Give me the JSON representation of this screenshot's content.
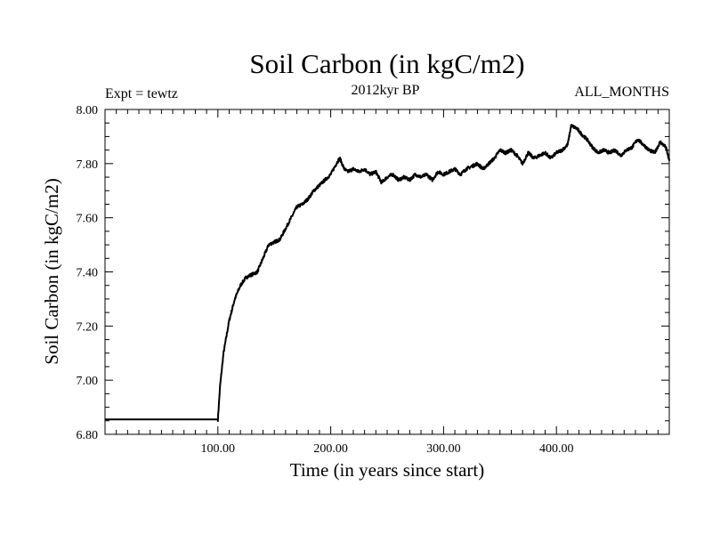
{
  "chart_data": {
    "type": "line",
    "title": "Soil Carbon (in kgC/m2)",
    "subtitle": "2012kyr BP",
    "experiment_label": "Expt = tewtz",
    "months_label": "ALL_MONTHS",
    "xlabel": "Time (in years since start)",
    "ylabel": "Soil Carbon (in kgC/m2)",
    "xlim": [
      0,
      500
    ],
    "ylim": [
      6.8,
      8.0
    ],
    "x_ticks": [
      100,
      200,
      300,
      400
    ],
    "x_tick_labels": [
      "100.00",
      "200.00",
      "300.00",
      "400.00"
    ],
    "y_ticks": [
      6.8,
      7.0,
      7.2,
      7.4,
      7.6,
      7.8,
      8.0
    ],
    "y_tick_labels": [
      "6.80",
      "7.00",
      "7.20",
      "7.40",
      "7.60",
      "7.80",
      "8.00"
    ],
    "series": [
      {
        "name": "Soil Carbon",
        "color": "#000000",
        "x": [
          0,
          100,
          102,
          105,
          110,
          115,
          120,
          125,
          130,
          135,
          140,
          145,
          150,
          155,
          160,
          165,
          170,
          175,
          180,
          185,
          190,
          195,
          200,
          205,
          208,
          212,
          215,
          220,
          225,
          230,
          235,
          240,
          245,
          250,
          255,
          260,
          265,
          270,
          275,
          280,
          285,
          290,
          295,
          300,
          305,
          310,
          315,
          320,
          325,
          330,
          335,
          340,
          345,
          350,
          355,
          360,
          365,
          370,
          375,
          380,
          385,
          390,
          395,
          400,
          405,
          410,
          413,
          418,
          422,
          427,
          432,
          437,
          442,
          447,
          452,
          457,
          462,
          467,
          472,
          477,
          482,
          487,
          492,
          497,
          500
        ],
        "y": [
          6.855,
          6.855,
          6.98,
          7.1,
          7.22,
          7.3,
          7.35,
          7.38,
          7.39,
          7.4,
          7.45,
          7.5,
          7.51,
          7.52,
          7.56,
          7.6,
          7.64,
          7.65,
          7.67,
          7.7,
          7.72,
          7.74,
          7.76,
          7.8,
          7.82,
          7.78,
          7.77,
          7.78,
          7.77,
          7.78,
          7.76,
          7.77,
          7.73,
          7.75,
          7.76,
          7.74,
          7.75,
          7.74,
          7.76,
          7.75,
          7.76,
          7.74,
          7.77,
          7.76,
          7.77,
          7.78,
          7.76,
          7.78,
          7.79,
          7.8,
          7.78,
          7.8,
          7.82,
          7.85,
          7.84,
          7.85,
          7.83,
          7.8,
          7.84,
          7.82,
          7.83,
          7.84,
          7.82,
          7.84,
          7.85,
          7.87,
          7.94,
          7.93,
          7.91,
          7.89,
          7.86,
          7.84,
          7.85,
          7.84,
          7.85,
          7.83,
          7.85,
          7.86,
          7.89,
          7.87,
          7.85,
          7.84,
          7.88,
          7.86,
          7.81
        ]
      }
    ]
  }
}
